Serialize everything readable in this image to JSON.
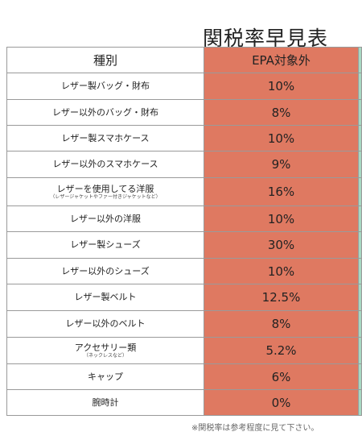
{
  "title": "関税率早見表",
  "table": {
    "header_category": "種別",
    "header_rate": "EPA対象外",
    "rows": [
      {
        "category": "レザー製バッグ・財布",
        "sub": "",
        "rate": "10%"
      },
      {
        "category": "レザー以外のバッグ・財布",
        "sub": "",
        "rate": "8%"
      },
      {
        "category": "レザー製スマホケース",
        "sub": "",
        "rate": "10%"
      },
      {
        "category": "レザー以外のスマホケース",
        "sub": "",
        "rate": "9%"
      },
      {
        "category": "レザーを使用してる洋服",
        "sub": "（レザージャケットやファー付きジャケットなど）",
        "rate": "16%"
      },
      {
        "category": "レザー以外の洋服",
        "sub": "",
        "rate": "10%"
      },
      {
        "category": "レザー製シューズ",
        "sub": "",
        "rate": "30%"
      },
      {
        "category": "レザー以外のシューズ",
        "sub": "",
        "rate": "10%"
      },
      {
        "category": "レザー製ベルト",
        "sub": "",
        "rate": "12.5%"
      },
      {
        "category": "レザー以外のベルト",
        "sub": "",
        "rate": "8%"
      },
      {
        "category": "アクセサリー類",
        "sub": "（ネックレスなど）",
        "rate": "5.2%"
      },
      {
        "category": "キャップ",
        "sub": "",
        "rate": "6%"
      },
      {
        "category": "腕時計",
        "sub": "",
        "rate": "0%"
      }
    ]
  },
  "footnote": "※関税率は参考程度に見て下さい。",
  "colors": {
    "rate_column": "#df7961",
    "edge_column": "#a7d8c2",
    "border": "#9a9a9a"
  }
}
